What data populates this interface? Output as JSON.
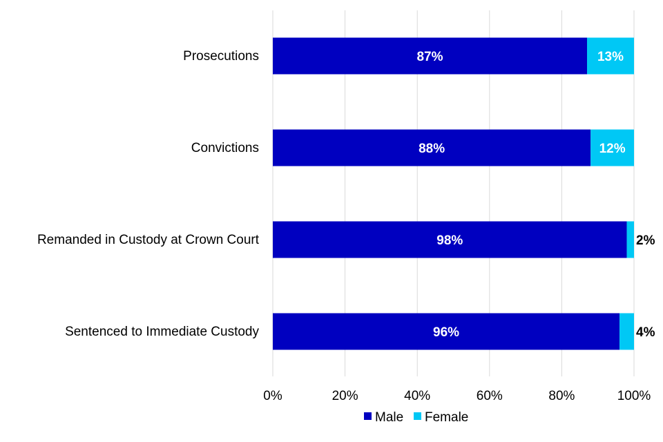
{
  "chart_data": {
    "type": "bar",
    "orientation": "horizontal",
    "stacked": true,
    "categories": [
      "Prosecutions",
      "Convictions",
      "Remanded in Custody at Crown Court",
      "Sentenced to Immediate Custody"
    ],
    "series": [
      {
        "name": "Male",
        "color": "#0000c0",
        "values": [
          87,
          88,
          98,
          96
        ],
        "labels": [
          "87%",
          "88%",
          "98%",
          "96%"
        ]
      },
      {
        "name": "Female",
        "color": "#00c8f5",
        "values": [
          13,
          12,
          2,
          4
        ],
        "labels": [
          "13%",
          "12%",
          "2%",
          "4%"
        ]
      }
    ],
    "xlim": [
      0,
      100
    ],
    "xticks": [
      0,
      20,
      40,
      60,
      80,
      100
    ],
    "xtick_labels": [
      "0%",
      "20%",
      "40%",
      "60%",
      "80%",
      "100%"
    ],
    "grid": true,
    "legend_position": "bottom"
  }
}
